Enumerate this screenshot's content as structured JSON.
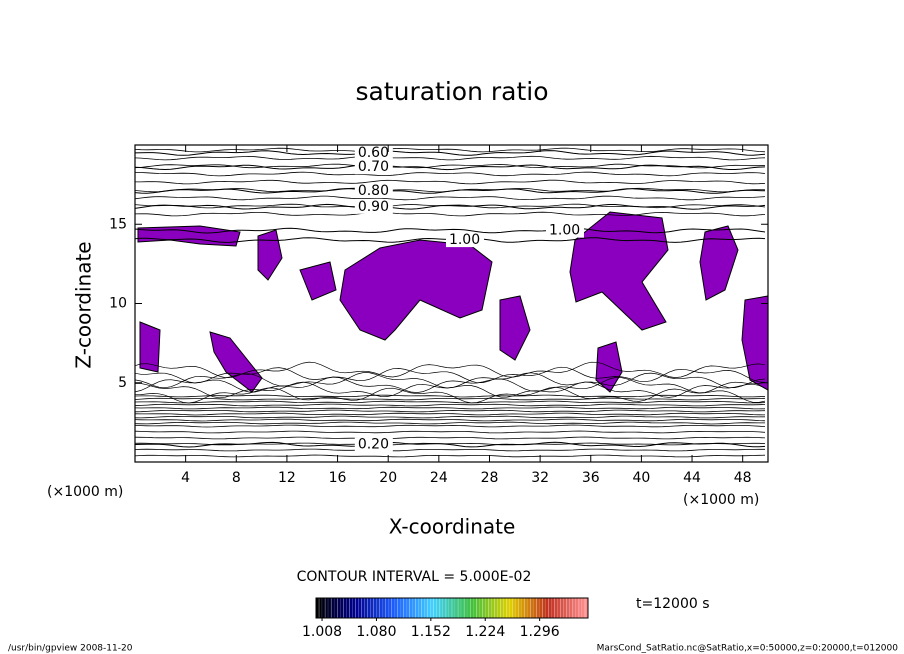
{
  "chart_data": {
    "type": "contour",
    "title": "saturation ratio",
    "xlabel": "X-coordinate",
    "ylabel": "Z-coordinate",
    "xunit": "(×1000 m)",
    "xlim": [
      0,
      50
    ],
    "xticks": [
      4,
      8,
      12,
      16,
      20,
      24,
      28,
      32,
      36,
      40,
      44,
      48
    ],
    "ylim": [
      0,
      20
    ],
    "yticks": [
      5,
      10,
      15
    ],
    "fill_color": "#8b00bf",
    "contours": [
      {
        "level": 0.6,
        "label": "0.60",
        "x": 17.6,
        "z": 19.5
      },
      {
        "level": 0.7,
        "label": "0.70",
        "x": 17.6,
        "z": 18.6
      },
      {
        "level": 0.8,
        "label": "0.80",
        "x": 17.6,
        "z": 17.1
      },
      {
        "level": 0.9,
        "label": "0.90",
        "x": 17.6,
        "z": 16.1
      },
      {
        "level": 1.0,
        "label": "1.00",
        "x": 24.8,
        "z": 14.0
      },
      {
        "level": 1.0,
        "label": "1.00",
        "x": 32.7,
        "z": 14.6
      },
      {
        "level": 0.2,
        "label": "0.20",
        "x": 17.6,
        "z": 1.1
      }
    ],
    "contour_interval": "CONTOUR INTERVAL = 5.000E-02",
    "colorbar": {
      "clim": [
        1.0,
        1.36
      ],
      "ticks": [
        1.008,
        {
          "value": 1.08,
          "label": "1.080"
        },
        1.152,
        1.224,
        1.296
      ],
      "colormap": [
        "#000000",
        "#000090",
        "#2060ff",
        "#40d0ff",
        "#40c040",
        "#e0d000",
        "#c03020",
        "#ff9090"
      ]
    },
    "time_label": "t=12000 s",
    "footer_left": "/usr/bin/gpview  2008-11-20",
    "footer_right": "MarsCond_SatRatio.nc@SatRatio,x=0:50000,z=0:20000,t=012000"
  }
}
